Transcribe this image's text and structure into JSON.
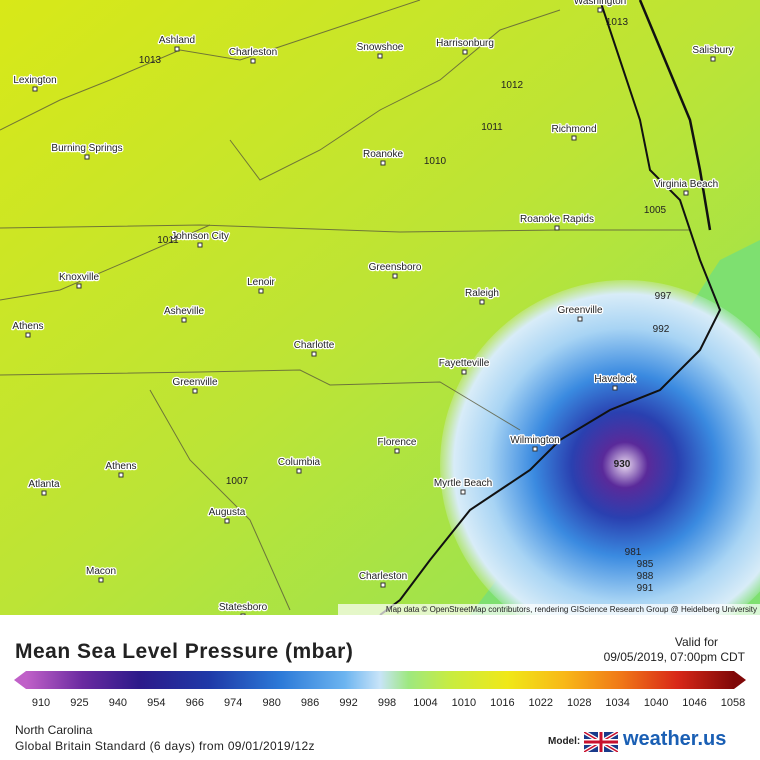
{
  "map": {
    "cities": [
      "Washington",
      "Ashland",
      "Charleston",
      "Snowshoe",
      "Harrisonburg",
      "Salisbury",
      "Lexington",
      "Richmond",
      "Burning Springs",
      "Roanoke",
      "Virginia Beach",
      "Roanoke Rapids",
      "Johnson City",
      "Greensboro",
      "Knoxville",
      "Lenoir",
      "Raleigh",
      "Asheville",
      "Greenville",
      "Athens",
      "Charlotte",
      "Fayetteville",
      "Havelock",
      "Greenville",
      "Florence",
      "Wilmington",
      "Athens",
      "Columbia",
      "Myrtle Beach",
      "Atlanta",
      "Augusta",
      "Macon",
      "Charleston",
      "Statesboro"
    ],
    "pressure_labels": [
      "1013",
      "1013",
      "1012",
      "1011",
      "1010",
      "1005",
      "1011",
      "997",
      "992",
      "930",
      "1007",
      "981",
      "985",
      "988",
      "991"
    ],
    "attribution": "Map data © OpenStreetMap contributors, rendering GIScience Research Group @ Heidelberg University"
  },
  "footer": {
    "title": "Mean Sea Level Pressure (mbar)",
    "valid_label": "Valid for",
    "valid_time": "09/05/2019, 07:00pm CDT",
    "scale_ticks": [
      "910",
      "925",
      "940",
      "954",
      "966",
      "974",
      "980",
      "986",
      "992",
      "998",
      "1004",
      "1010",
      "1016",
      "1022",
      "1028",
      "1034",
      "1040",
      "1046",
      "1058"
    ],
    "region": "North Carolina",
    "model_run": "Global Britain Standard (6 days) from 09/01/2019/12z",
    "model_label": "Model:",
    "brand": "weather.us"
  }
}
